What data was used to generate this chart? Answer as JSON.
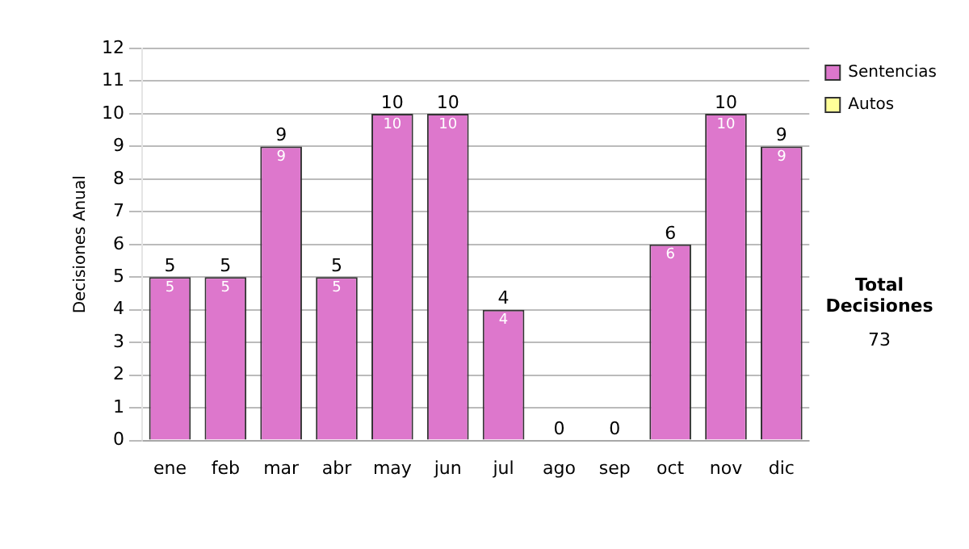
{
  "chart_data": {
    "type": "bar",
    "stacked": true,
    "ylabel": "Decisiones Anual",
    "categories": [
      "ene",
      "feb",
      "mar",
      "abr",
      "may",
      "jun",
      "jul",
      "ago",
      "sep",
      "oct",
      "nov",
      "dic"
    ],
    "series": [
      {
        "name": "Sentencias",
        "color": "#dd77cc",
        "values": [
          5,
          5,
          9,
          5,
          10,
          10,
          4,
          0,
          0,
          6,
          10,
          9
        ],
        "value_labels": [
          "5",
          "5",
          "9",
          "5",
          "10",
          "10",
          "4",
          null,
          null,
          "6",
          "10",
          "9"
        ]
      },
      {
        "name": "Autos",
        "color": "#ffff99",
        "values": [
          0,
          0,
          0,
          0,
          0,
          0,
          0,
          0,
          0,
          0,
          0,
          0
        ]
      }
    ],
    "totals": [
      "5",
      "5",
      "9",
      "5",
      "10",
      "10",
      "4",
      "0",
      "0",
      "6",
      "10",
      "9"
    ],
    "ylim": [
      0,
      12
    ],
    "yticks": [
      0,
      1,
      2,
      3,
      4,
      5,
      6,
      7,
      8,
      9,
      10,
      11,
      12
    ],
    "grid": "y",
    "legend": "right",
    "annotations": [
      "Total Decisiones",
      "73"
    ]
  }
}
